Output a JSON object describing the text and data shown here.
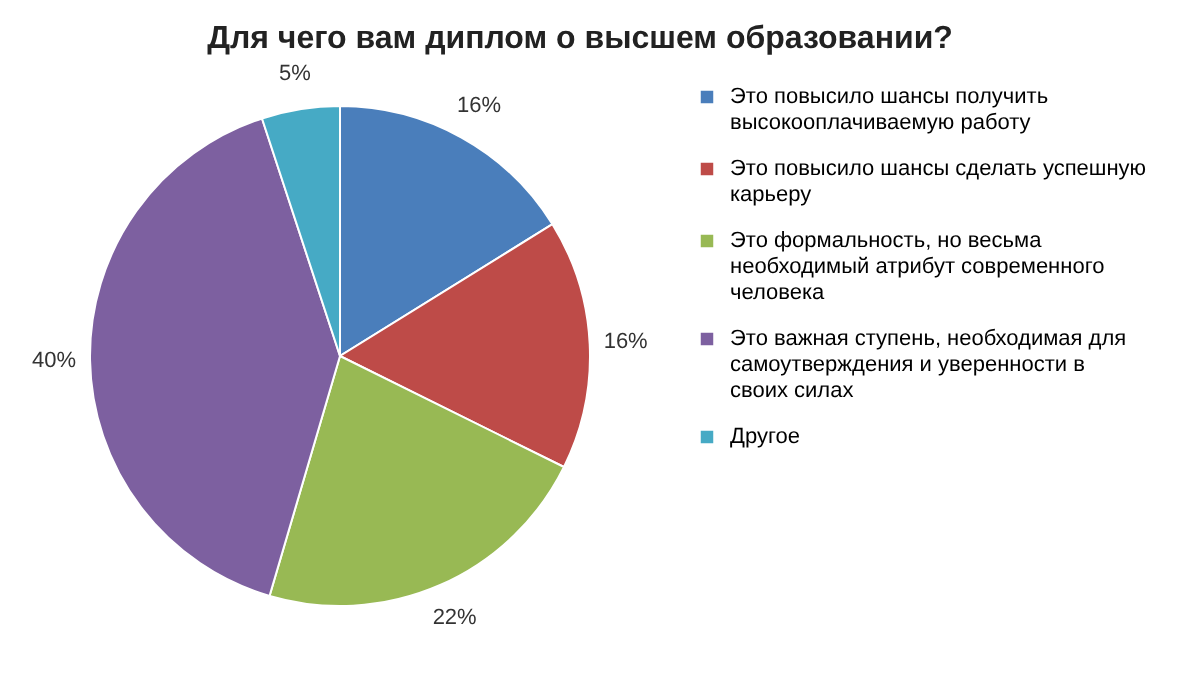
{
  "chart_data": {
    "type": "pie",
    "title": "Для чего вам диплом о высшем образовании?",
    "categories": [
      "Это повысило шансы получить высокооплачиваемую работу",
      "Это повысило шансы сделать успешную карьеру",
      "Это формальность, но весьма необходимый атрибут современного человека",
      "Это важная ступень, необходимая для самоутверждения и уверенности в своих силах",
      "Другое"
    ],
    "values": [
      16,
      16,
      22,
      40,
      5
    ],
    "colors": [
      "#4a7ebb",
      "#be4b48",
      "#98b954",
      "#7d60a0",
      "#46aac5"
    ],
    "value_labels": [
      "16%",
      "16%",
      "22%",
      "40%",
      "5%"
    ],
    "legend": "right"
  }
}
